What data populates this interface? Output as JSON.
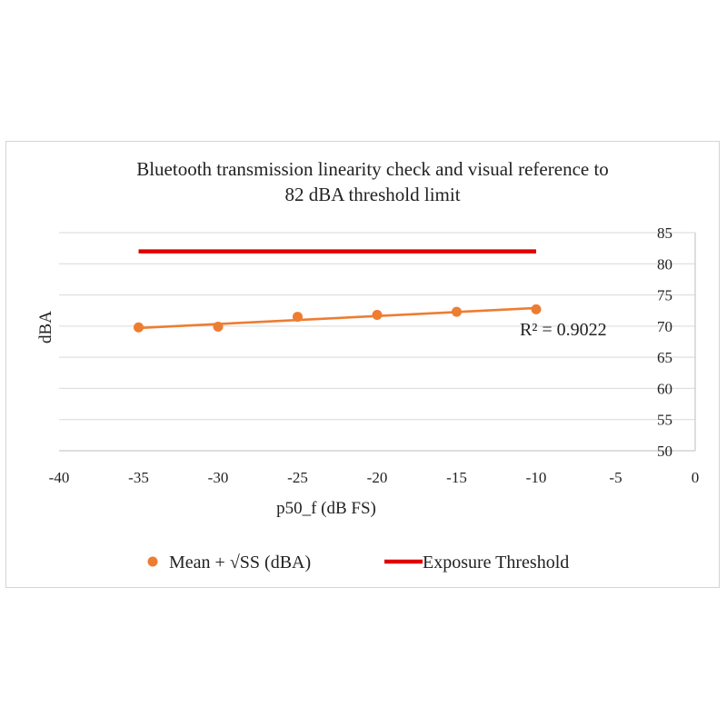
{
  "chart_data": {
    "type": "scatter",
    "title_lines": [
      "Bluetooth transmission linearity check and visual reference to",
      "82 dBA threshold limit"
    ],
    "xlabel": "p50_f (dB FS)",
    "ylabel": "dBA",
    "xlim": [
      -40,
      0
    ],
    "ylim": [
      50,
      85
    ],
    "x_ticks": [
      -40,
      -35,
      -30,
      -25,
      -20,
      -15,
      -10,
      -5,
      0
    ],
    "y_ticks": [
      50,
      55,
      60,
      65,
      70,
      75,
      80,
      85
    ],
    "y_axis_side": "right",
    "grid": "horizontal",
    "series": [
      {
        "name": "Mean + √SS (dBA)",
        "type": "scatter",
        "color": "#ED7D31",
        "points": [
          {
            "x": -35,
            "y": 69.8
          },
          {
            "x": -30,
            "y": 69.9
          },
          {
            "x": -25,
            "y": 71.5
          },
          {
            "x": -20,
            "y": 71.8
          },
          {
            "x": -15,
            "y": 72.3
          },
          {
            "x": -10,
            "y": 72.7
          }
        ],
        "trendline": {
          "type": "linear",
          "from": {
            "x": -35,
            "y": 69.7
          },
          "to": {
            "x": -10,
            "y": 72.9
          },
          "label": "R² = 0.9022"
        }
      },
      {
        "name": "Exposure Threshold",
        "type": "line",
        "color": "#E00000",
        "points": [
          {
            "x": -35,
            "y": 82
          },
          {
            "x": -10,
            "y": 82
          }
        ]
      }
    ],
    "legend_position": "bottom"
  }
}
